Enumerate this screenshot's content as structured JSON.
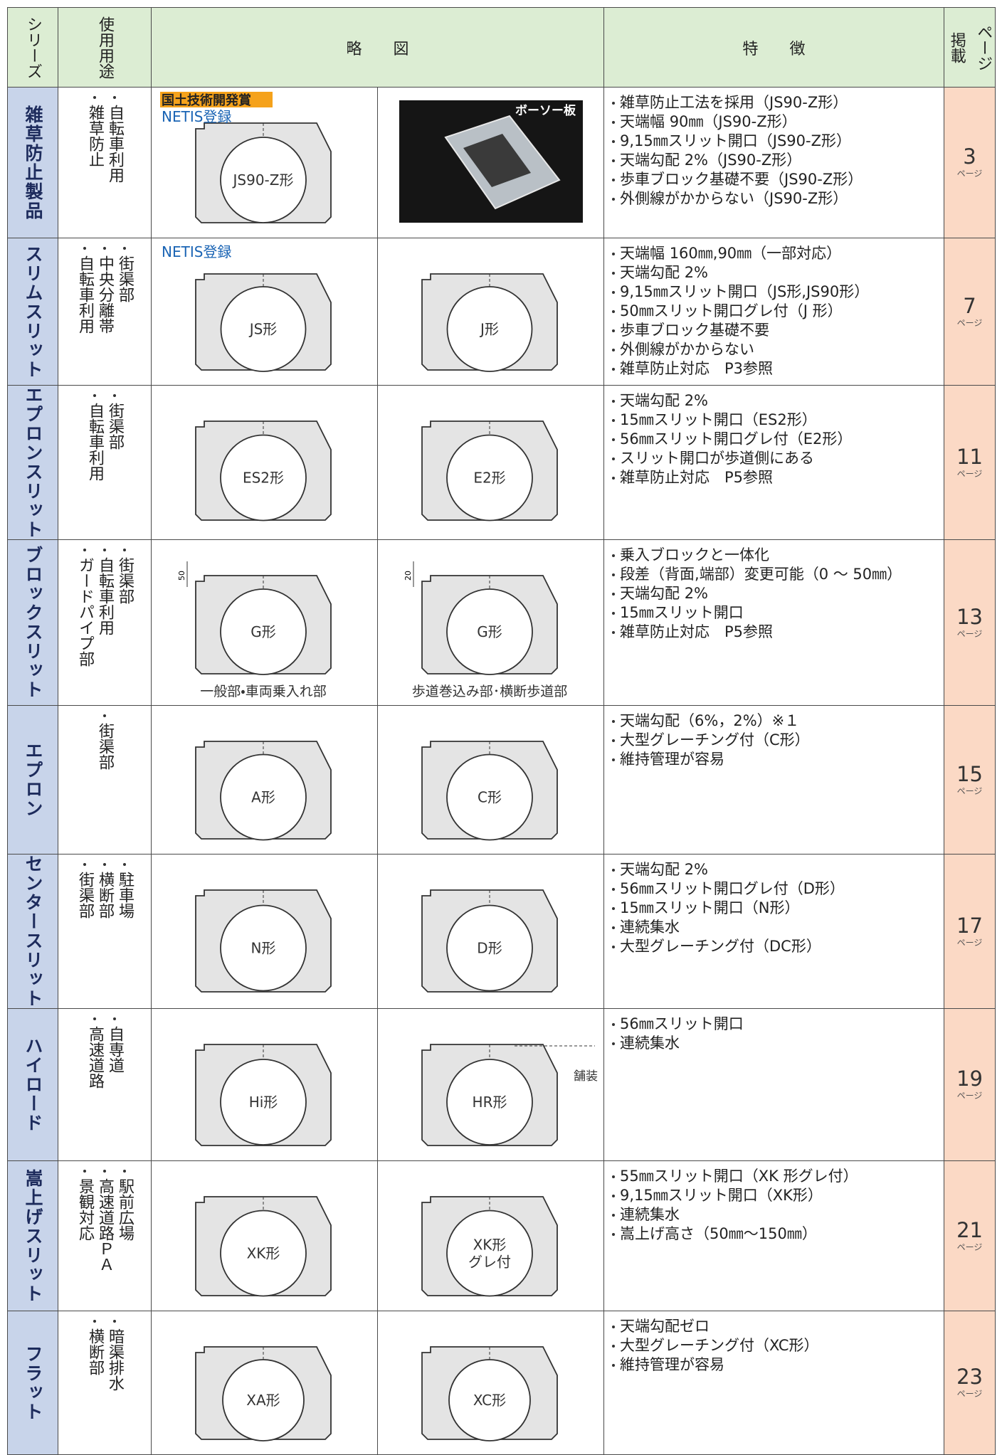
{
  "header": {
    "series": "シリーズ",
    "uses": "使用用途",
    "diagram": "略　　図",
    "features": "特　　徴",
    "page": [
      "掲載",
      "ページ"
    ]
  },
  "page_unit": "ページ",
  "rows": [
    {
      "name": "雑草防止製品",
      "uses": [
        "自転車利用",
        "雑草防止"
      ],
      "diagrams": [
        {
          "badge": "国土技術開発賞",
          "netis": "NETIS登録",
          "labels": [
            "JS90-Z形"
          ]
        },
        {
          "photo_label": "ボーソー板"
        }
      ],
      "features": [
        "雑草防止工法を採用（JS90-Z形）",
        "天端幅 90㎜（JS90-Z形）",
        "9,15㎜スリット開口（JS90-Z形）",
        "天端勾配 2%（JS90-Z形）",
        "歩車ブロック基礎不要（JS90-Z形）",
        "外側線がかからない（JS90-Z形）"
      ],
      "page": 3
    },
    {
      "name": "スリムスリット",
      "uses": [
        "街渠部",
        "中央分離帯",
        "自転車利用"
      ],
      "diagrams": [
        {
          "netis": "NETIS登録",
          "labels": [
            "JS形"
          ]
        },
        {
          "labels": [
            "J形"
          ]
        }
      ],
      "features": [
        "天端幅 160㎜,90㎜（一部対応）",
        "天端勾配 2%",
        "9,15㎜スリット開口（JS形,JS90形）",
        "50㎜スリット開口グレ付（J 形）",
        "歩車ブロック基礎不要",
        "外側線がかからない",
        "雑草防止対応　P3参照"
      ],
      "page": 7
    },
    {
      "name": "エプロンスリット",
      "uses": [
        "街渠部",
        "自転車利用"
      ],
      "diagrams": [
        {
          "labels": [
            "ES2形"
          ]
        },
        {
          "labels": [
            "E2形"
          ]
        }
      ],
      "features": [
        "天端勾配 2%",
        "15㎜スリット開口（ES2形）",
        "56㎜スリット開口グレ付（E2形）",
        "スリット開口が歩道側にある",
        "雑草防止対応　P5参照"
      ],
      "page": 11
    },
    {
      "name": "ブロックスリット",
      "uses": [
        "街渠部",
        "自転車利用",
        "ガードパイプ部"
      ],
      "diagrams": [
        {
          "dim": "50",
          "labels": [
            "G形"
          ],
          "caption": "一般部・車両乗入れ部"
        },
        {
          "dim": "20",
          "labels": [
            "G形"
          ],
          "caption": "歩道巻込み部･横断歩道部"
        }
      ],
      "features": [
        "乗入ブロックと一体化",
        "段差（背面,端部）変更可能（0 ～ 50㎜）",
        "天端勾配 2%",
        "15㎜スリット開口",
        "雑草防止対応　P5参照"
      ],
      "page": 13
    },
    {
      "name": "エプロン",
      "uses": [
        "街渠部"
      ],
      "diagrams": [
        {
          "labels": [
            "A形"
          ]
        },
        {
          "labels": [
            "C形"
          ]
        }
      ],
      "features": [
        "天端勾配（6%，2%）※１",
        "大型グレーチング付（C形）",
        "維持管理が容易"
      ],
      "page": 15
    },
    {
      "name": "センタースリット",
      "uses": [
        "駐車場",
        "横断部",
        "街渠部"
      ],
      "diagrams": [
        {
          "labels": [
            "N形"
          ]
        },
        {
          "labels": [
            "D形"
          ]
        }
      ],
      "features": [
        "天端勾配 2%",
        "56㎜スリット開口グレ付（D形）",
        "15㎜スリット開口（N形）",
        "連続集水",
        "大型グレーチング付（DC形）"
      ],
      "page": 17
    },
    {
      "name": "ハイロード",
      "uses": [
        "自専道",
        "高速道路"
      ],
      "diagrams": [
        {
          "labels": [
            "Hi形"
          ]
        },
        {
          "labels": [
            "HR形"
          ],
          "note": "舗装"
        }
      ],
      "features": [
        "56㎜スリット開口",
        "連続集水"
      ],
      "page": 19
    },
    {
      "name": "嵩上げスリット",
      "uses": [
        "駅前広場",
        "高速道路ＰＡ",
        "景観対応"
      ],
      "diagrams": [
        {
          "labels": [
            "XK形"
          ]
        },
        {
          "labels": [
            "XK形",
            "グレ付"
          ]
        }
      ],
      "features": [
        "55㎜スリット開口（XK 形グレ付）",
        "9,15㎜スリット開口（XK形）",
        "連続集水",
        "嵩上げ高さ（50㎜～150㎜）"
      ],
      "page": 21
    },
    {
      "name": "フラット",
      "uses": [
        "暗渠排水",
        "横断部"
      ],
      "diagrams": [
        {
          "labels": [
            "XA形"
          ]
        },
        {
          "labels": [
            "XC形"
          ]
        }
      ],
      "features": [
        "天端勾配ゼロ",
        "大型グレーチング付（XC形）",
        "維持管理が容易"
      ],
      "page": 23
    }
  ]
}
